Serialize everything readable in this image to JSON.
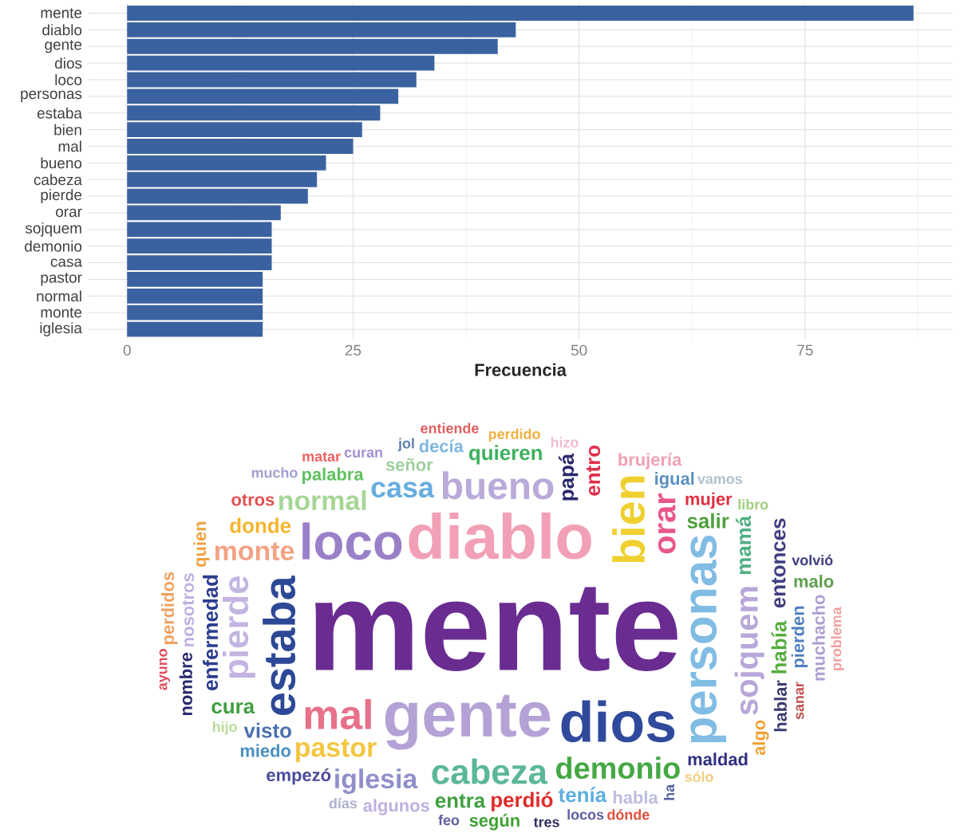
{
  "chart_data": [
    {
      "type": "bar",
      "orientation": "horizontal",
      "xlabel": "Frecuencia",
      "categories": [
        "mente",
        "diablo",
        "gente",
        "dios",
        "loco",
        "personas",
        "estaba",
        "bien",
        "mal",
        "bueno",
        "cabeza",
        "pierde",
        "orar",
        "sojquem",
        "demonio",
        "casa",
        "pastor",
        "normal",
        "monte",
        "iglesia"
      ],
      "values": [
        87,
        43,
        41,
        34,
        32,
        30,
        28,
        26,
        25,
        22,
        21,
        20,
        17,
        16,
        16,
        16,
        15,
        15,
        15,
        15
      ],
      "color": "#3a62a0",
      "xlim": [
        -4.35,
        91.35
      ],
      "xticks": [
        0,
        25,
        50,
        75
      ],
      "grid": true
    },
    {
      "type": "other",
      "annotations": [
        "mente",
        "diablo",
        "gente",
        "dios",
        "loco",
        "personas",
        "estaba",
        "bien",
        "mal",
        "bueno",
        "cabeza",
        "pierde",
        "orar",
        "sojquem",
        "demonio",
        "casa",
        "pastor",
        "normal",
        "monte",
        "iglesia",
        "enfermedad",
        "papá",
        "había",
        "mamá",
        "entro",
        "visto",
        "salir",
        "donde",
        "entra",
        "perdió",
        "quieren",
        "cura",
        "tenía",
        "entonces",
        "señor",
        "pierden",
        "palabra",
        "nosotros",
        "maldad",
        "algunos",
        "mujer",
        "miedo",
        "empezó",
        "hablar",
        "igual",
        "nombre",
        "decía",
        "habla",
        "muchacho",
        "brujería",
        "perdidos",
        "quien",
        "según",
        "otros",
        "algo",
        "malo",
        "curan",
        "hijo",
        "sólo",
        "locos",
        "hizo",
        "feo",
        "jol",
        "ha",
        "sanar",
        "perdido",
        "ayuno",
        "volvió",
        "días",
        "tres",
        "libro",
        "problema",
        "entiende",
        "vamos",
        "dónde",
        "matar",
        "mucho"
      ],
      "colors": [
        "#6a2c91",
        "#f2a0b5",
        "#b4a2d6",
        "#2f4a9c",
        "#9a80c8",
        "#80bce3",
        "#2d4896",
        "#f0d030",
        "#e8718a",
        "#b9aada",
        "#5bb79a",
        "#c3b4e2",
        "#e9568a",
        "#b7a7d9",
        "#45a845",
        "#66ade0",
        "#f4c640",
        "#a6d696",
        "#f3a282",
        "#8f8fca",
        "#2b3d8e",
        "#28286e",
        "#56ad3e",
        "#4fae80",
        "#e0304f",
        "#4a70b0",
        "#4fa03f",
        "#f4b52e",
        "#3fa03f",
        "#e02a2a",
        "#3eb05e",
        "#3fa03f",
        "#5daee0",
        "#3e3e80",
        "#9ecf9e",
        "#4e7ec0",
        "#5ec05e",
        "#c0b0e0",
        "#2f2f80",
        "#bfb0e0",
        "#e03040",
        "#4a8fc0",
        "#4a4a9a",
        "#3a3a6e",
        "#5a90c0",
        "#28286e",
        "#7eb6e0",
        "#bcbce0",
        "#ae9ed0",
        "#f0a0b0",
        "#f0a060",
        "#f0a040",
        "#3ea030",
        "#e05050",
        "#f0a030",
        "#5ea04e",
        "#a08ed0",
        "#b8dc98",
        "#eecf7e",
        "#5e5ea0",
        "#f0bcd0",
        "#5e5ea0",
        "#5e80b0",
        "#5060a0",
        "#c05050",
        "#f0b040",
        "#e05060",
        "#3e3e80",
        "#b0b0d0",
        "#303060",
        "#a0d080",
        "#f0a0a0",
        "#e06060",
        "#b0c0d0",
        "#e05040",
        "#f06060",
        "#a0a0d0"
      ]
    }
  ]
}
